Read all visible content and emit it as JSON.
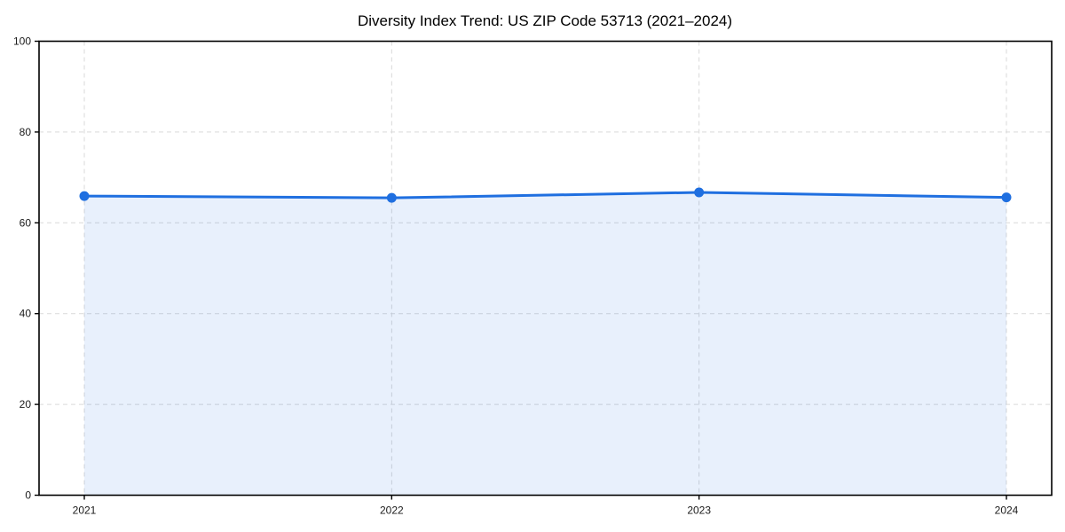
{
  "chart_data": {
    "type": "area",
    "title": "Diversity Index Trend: US ZIP Code 53713 (2021–2024)",
    "categories": [
      "2021",
      "2022",
      "2023",
      "2024"
    ],
    "series": [
      {
        "name": "Diversity Index",
        "values": [
          65.9,
          65.5,
          66.7,
          65.6
        ]
      }
    ],
    "xlabel": "",
    "ylabel": "",
    "ylim": [
      0,
      100
    ],
    "yticks": [
      0,
      20,
      40,
      60,
      80,
      100
    ],
    "grid": true,
    "grid_style": "dashed",
    "legend_position": "none",
    "colors": {
      "line": "#1f6fe0",
      "marker": "#1f6fe0",
      "fill": "#1f6fe0",
      "fill_opacity": "0.10",
      "grid": "#d9d9d9",
      "axis": "#000000",
      "tick_text": "#1a1a1a",
      "background": "#ffffff"
    }
  }
}
